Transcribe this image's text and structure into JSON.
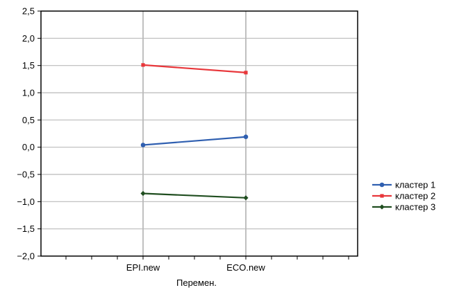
{
  "chart_data": {
    "type": "line",
    "title": "",
    "xlabel": "Перемен.",
    "ylabel": "",
    "categories": [
      "EPI.new",
      "ECO.new"
    ],
    "ylim": [
      -2.0,
      2.5
    ],
    "yticks": [
      2.5,
      2.0,
      1.5,
      1.0,
      0.5,
      0.0,
      -0.5,
      -1.0,
      -1.5,
      -2.0
    ],
    "ytick_labels": [
      "2,5",
      "2,0",
      "1,5",
      "1,0",
      "0,5",
      "0,0",
      "−0,5",
      "−1,0",
      "−1,5",
      "−2,0"
    ],
    "grid": true,
    "legend": "right",
    "series": [
      {
        "name": "кластер 1",
        "values": [
          0.04,
          0.19
        ],
        "color": "#2f5fb0",
        "marker": "circle"
      },
      {
        "name": "кластер 2",
        "values": [
          1.51,
          1.37
        ],
        "color": "#e8363a",
        "marker": "square"
      },
      {
        "name": "кластер 3",
        "values": [
          -0.85,
          -0.93
        ],
        "color": "#1f4d1f",
        "marker": "diamond"
      }
    ]
  }
}
